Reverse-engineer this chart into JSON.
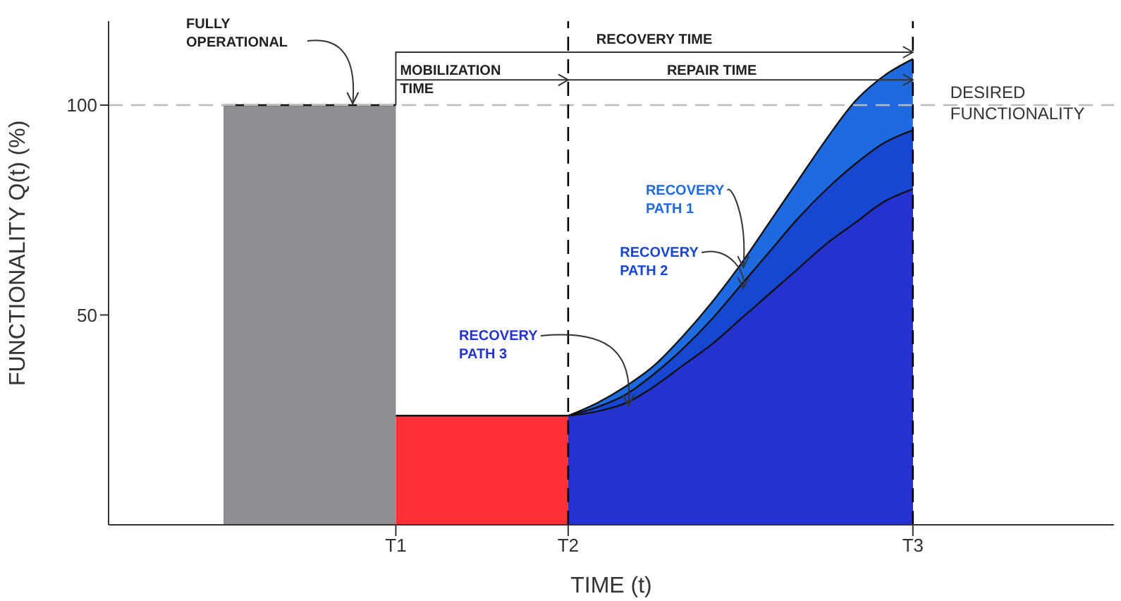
{
  "chart_data": {
    "type": "area",
    "xlabel": "TIME (t)",
    "ylabel": "FUNCTIONALITY Q(t) (%)",
    "categories": [
      null,
      null,
      null,
      null,
      null,
      null,
      null,
      null,
      null,
      null,
      "T1",
      null,
      null,
      null,
      null,
      null,
      "T2",
      null,
      null,
      null,
      null,
      null,
      null,
      null,
      null,
      null,
      null,
      null,
      "T3",
      null,
      null,
      null,
      null,
      null,
      null,
      null
    ],
    "series": [
      {
        "color": "#8e8d92",
        "values": [
          null,
          null,
          null,
          null,
          100,
          100,
          100,
          100,
          100,
          100,
          100,
          null,
          null,
          null,
          null,
          null,
          null,
          null,
          null,
          null,
          null,
          null,
          null,
          null,
          null,
          null,
          null,
          null,
          null,
          null,
          null,
          null,
          null,
          null,
          null,
          null
        ]
      },
      {
        "color": "#ff3035",
        "values": [
          null,
          null,
          null,
          null,
          null,
          null,
          null,
          null,
          null,
          null,
          26,
          26,
          26,
          26,
          26,
          26,
          26,
          null,
          null,
          null,
          null,
          null,
          null,
          null,
          null,
          null,
          null,
          null,
          null,
          null,
          null,
          null,
          null,
          null,
          null,
          null
        ]
      },
      {
        "name": "RECOVERY PATH 1",
        "color": "#1e6ae0",
        "values": [
          null,
          null,
          null,
          null,
          null,
          null,
          null,
          null,
          null,
          null,
          null,
          null,
          null,
          null,
          null,
          null,
          26,
          29,
          33,
          38,
          45,
          53,
          62,
          72,
          82,
          92,
          101,
          107,
          111,
          null,
          null,
          null,
          null,
          null,
          null,
          null
        ]
      },
      {
        "name": "RECOVERY PATH 2",
        "color": "#1746d0",
        "values": [
          null,
          null,
          null,
          null,
          null,
          null,
          null,
          null,
          null,
          null,
          null,
          null,
          null,
          null,
          null,
          null,
          26,
          28,
          31,
          36,
          42,
          49,
          57,
          65,
          73,
          80,
          86,
          91,
          94,
          null,
          null,
          null,
          null,
          null,
          null,
          null
        ]
      },
      {
        "name": "RECOVERY PATH 3",
        "color": "#2433cf",
        "values": [
          null,
          null,
          null,
          null,
          null,
          null,
          null,
          null,
          null,
          null,
          null,
          null,
          null,
          null,
          null,
          null,
          26,
          27,
          29,
          33,
          38,
          43,
          49,
          55,
          61,
          67,
          72,
          77,
          80,
          null,
          null,
          null,
          null,
          null,
          null,
          null
        ]
      }
    ],
    "ylim": [
      0,
      120
    ],
    "yticks": [
      50,
      100
    ],
    "ref_lines": [
      {
        "axis": "y",
        "value": 100,
        "label": "DESIRED FUNCTIONALITY",
        "color": "#bbbbbb",
        "line_style": "dashed"
      },
      {
        "axis": "x",
        "value": "T2",
        "color": "#000000",
        "line_style": "dashed"
      },
      {
        "axis": "x",
        "value": "T3",
        "color": "#000000",
        "line_style": "dashed"
      }
    ],
    "annotations": [
      "FULLY OPERATIONAL",
      "RECOVERY TIME",
      {
        "text": "MOBILIZATION TIME",
        "x": "T2",
        "y": 106
      },
      "REPAIR TIME"
    ]
  }
}
